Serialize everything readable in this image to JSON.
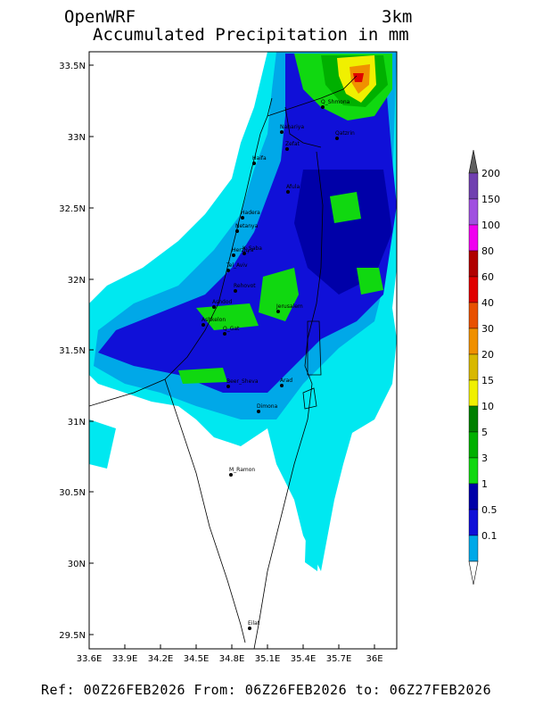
{
  "header": {
    "model": "OpenWRF",
    "resolution": "3km",
    "title": "Accumulated Precipitation in mm"
  },
  "footer": {
    "text": "Ref: 00Z26FEB2026  From: 06Z26FEB2026  to: 06Z27FEB2026"
  },
  "axes": {
    "lon_ticks": [
      "33.6E",
      "33.9E",
      "34.2E",
      "34.5E",
      "34.8E",
      "35.1E",
      "35.4E",
      "35.7E",
      "36E"
    ],
    "lat_ticks": [
      "33.5N",
      "33N",
      "32.5N",
      "32N",
      "31.5N",
      "31N",
      "30.5N",
      "30N",
      "29.5N"
    ]
  },
  "colorbar": {
    "labels": [
      "0.1",
      "0.5",
      "1",
      "3",
      "5",
      "10",
      "15",
      "20",
      "30",
      "40",
      "60",
      "80",
      "100",
      "150",
      "200"
    ],
    "colors": [
      "#00e8f0",
      "#00a8e8",
      "#1010d8",
      "#0000a8",
      "#10d810",
      "#00b000",
      "#008000",
      "#f0f000",
      "#d8b800",
      "#f09000",
      "#e85000",
      "#e00000",
      "#b00000",
      "#f000f0",
      "#a050e0",
      "#7040b0",
      "#606060"
    ]
  },
  "cities": [
    {
      "name": "Q_Shmona"
    },
    {
      "name": "Nahariya"
    },
    {
      "name": "Zefat"
    },
    {
      "name": "Qatzrin"
    },
    {
      "name": "Haifa"
    },
    {
      "name": "Afula"
    },
    {
      "name": "Hadera"
    },
    {
      "name": "Netanya"
    },
    {
      "name": "Herzliya"
    },
    {
      "name": "K_Saba"
    },
    {
      "name": "Tel_Aviv"
    },
    {
      "name": "Rehovot"
    },
    {
      "name": "Ashdod"
    },
    {
      "name": "Jerusalem"
    },
    {
      "name": "Ashkelon"
    },
    {
      "name": "Q_Gat"
    },
    {
      "name": "Beer_Sheva"
    },
    {
      "name": "Arad"
    },
    {
      "name": "Dimona"
    },
    {
      "name": "M_Ramon"
    },
    {
      "name": "Eilat"
    }
  ]
}
